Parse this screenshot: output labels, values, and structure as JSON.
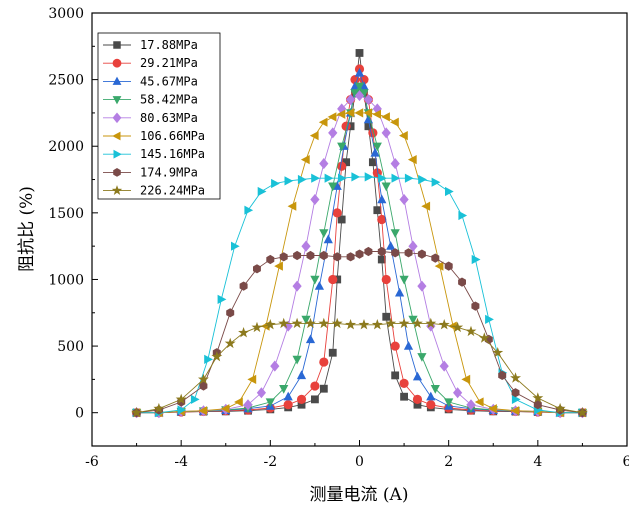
{
  "chart_data": {
    "type": "line",
    "xlabel": "测量电流 (A)",
    "ylabel": "阻抗比 (%)",
    "xlim": [
      -6,
      6
    ],
    "ylim": [
      -250,
      3000
    ],
    "xticks": [
      -6,
      -4,
      -2,
      0,
      2,
      4,
      6
    ],
    "yticks": [
      0,
      500,
      1000,
      1500,
      2000,
      2500,
      3000
    ],
    "legend_position": "top-left",
    "grid": false,
    "series": [
      {
        "name": "17.88MPa",
        "color": "#4a4a4a",
        "marker": "square",
        "x": [
          -5,
          -4.5,
          -4,
          -3.5,
          -3,
          -2.5,
          -2,
          -1.6,
          -1.3,
          -1.0,
          -0.8,
          -0.6,
          -0.5,
          -0.4,
          -0.3,
          -0.2,
          -0.1,
          0,
          0.1,
          0.2,
          0.3,
          0.4,
          0.5,
          0.6,
          0.8,
          1.0,
          1.3,
          1.6,
          2,
          2.5,
          3,
          3.5,
          4,
          4.5,
          5
        ],
        "y": [
          0,
          0,
          5,
          8,
          10,
          15,
          25,
          40,
          60,
          100,
          180,
          450,
          1000,
          1450,
          1880,
          2150,
          2400,
          2700,
          2400,
          2150,
          1880,
          1520,
          1150,
          720,
          280,
          120,
          60,
          40,
          25,
          15,
          10,
          8,
          5,
          0,
          0
        ]
      },
      {
        "name": "29.21MPa",
        "color": "#e8413c",
        "marker": "circle",
        "x": [
          -5,
          -4.5,
          -4,
          -3.5,
          -3,
          -2.5,
          -2,
          -1.6,
          -1.3,
          -1.0,
          -0.8,
          -0.6,
          -0.5,
          -0.4,
          -0.3,
          -0.2,
          -0.1,
          0,
          0.1,
          0.2,
          0.3,
          0.4,
          0.5,
          0.6,
          0.8,
          1.0,
          1.3,
          1.6,
          2,
          2.5,
          3,
          3.5,
          4,
          4.5,
          5
        ],
        "y": [
          0,
          0,
          5,
          10,
          15,
          20,
          35,
          60,
          100,
          200,
          380,
          1000,
          1500,
          1850,
          2150,
          2350,
          2500,
          2580,
          2500,
          2350,
          2100,
          1800,
          1450,
          1000,
          500,
          220,
          100,
          60,
          35,
          20,
          15,
          10,
          5,
          0,
          0
        ]
      },
      {
        "name": "45.67MPa",
        "color": "#2a68d4",
        "marker": "triangle-up",
        "x": [
          -5,
          -4.5,
          -4,
          -3.5,
          -3,
          -2.5,
          -2,
          -1.6,
          -1.3,
          -1.1,
          -0.9,
          -0.7,
          -0.5,
          -0.35,
          -0.2,
          -0.1,
          0,
          0.1,
          0.2,
          0.35,
          0.5,
          0.7,
          0.9,
          1.1,
          1.3,
          1.6,
          2,
          2.5,
          3,
          3.5,
          4,
          4.5,
          5
        ],
        "y": [
          0,
          0,
          8,
          12,
          18,
          30,
          50,
          120,
          280,
          550,
          950,
          1300,
          1700,
          2000,
          2250,
          2450,
          2550,
          2450,
          2200,
          1950,
          1600,
          1250,
          900,
          500,
          270,
          120,
          50,
          30,
          18,
          12,
          8,
          0,
          0
        ]
      },
      {
        "name": "58.42MPa",
        "color": "#3aa86b",
        "marker": "triangle-down",
        "x": [
          -5,
          -4.5,
          -4,
          -3.5,
          -3,
          -2.5,
          -2,
          -1.7,
          -1.4,
          -1.2,
          -1.0,
          -0.8,
          -0.6,
          -0.4,
          -0.2,
          -0.1,
          0,
          0.1,
          0.2,
          0.4,
          0.6,
          0.8,
          1.0,
          1.2,
          1.4,
          1.7,
          2,
          2.5,
          3,
          3.5,
          4,
          4.5,
          5
        ],
        "y": [
          0,
          0,
          8,
          12,
          20,
          35,
          80,
          180,
          400,
          700,
          1000,
          1350,
          1700,
          2000,
          2250,
          2400,
          2450,
          2400,
          2250,
          2000,
          1700,
          1350,
          1000,
          700,
          420,
          180,
          80,
          35,
          20,
          12,
          8,
          0,
          0
        ]
      },
      {
        "name": "80.63MPa",
        "color": "#b47ee3",
        "marker": "diamond",
        "x": [
          -5,
          -4.5,
          -4,
          -3.5,
          -3,
          -2.5,
          -2.2,
          -1.9,
          -1.6,
          -1.4,
          -1.2,
          -1.0,
          -0.8,
          -0.6,
          -0.4,
          -0.2,
          0,
          0.2,
          0.4,
          0.6,
          0.8,
          1.0,
          1.2,
          1.4,
          1.6,
          1.9,
          2.2,
          2.5,
          3,
          3.5,
          4,
          4.5,
          5
        ],
        "y": [
          0,
          0,
          10,
          15,
          25,
          60,
          150,
          350,
          650,
          950,
          1250,
          1600,
          1870,
          2100,
          2280,
          2350,
          2380,
          2350,
          2280,
          2100,
          1870,
          1600,
          1250,
          950,
          650,
          350,
          150,
          60,
          25,
          15,
          10,
          0,
          0
        ]
      },
      {
        "name": "106.66MPa",
        "color": "#c8960c",
        "marker": "triangle-left",
        "x": [
          -5,
          -4.5,
          -4,
          -3.5,
          -3,
          -2.7,
          -2.4,
          -2.1,
          -1.8,
          -1.5,
          -1.2,
          -1.0,
          -0.8,
          -0.6,
          -0.4,
          -0.2,
          0,
          0.2,
          0.4,
          0.6,
          0.8,
          1.0,
          1.2,
          1.5,
          1.8,
          2.1,
          2.4,
          2.7,
          3,
          3.5,
          4,
          4.5,
          5
        ],
        "y": [
          0,
          0,
          10,
          15,
          30,
          80,
          250,
          650,
          1100,
          1550,
          1900,
          2080,
          2180,
          2220,
          2240,
          2250,
          2250,
          2250,
          2240,
          2220,
          2180,
          2080,
          1900,
          1550,
          1100,
          650,
          250,
          80,
          30,
          15,
          10,
          0,
          0
        ]
      },
      {
        "name": "145.16MPa",
        "color": "#19c1d7",
        "marker": "triangle-right",
        "x": [
          -5,
          -4.5,
          -4,
          -3.7,
          -3.4,
          -3.1,
          -2.8,
          -2.5,
          -2.2,
          -1.9,
          -1.6,
          -1.3,
          -1.0,
          -0.7,
          -0.4,
          -0.1,
          0.2,
          0.5,
          0.8,
          1.1,
          1.4,
          1.7,
          2.0,
          2.3,
          2.6,
          2.9,
          3.2,
          3.5,
          4,
          4.5,
          5
        ],
        "y": [
          0,
          0,
          20,
          100,
          400,
          850,
          1250,
          1520,
          1660,
          1720,
          1740,
          1750,
          1760,
          1760,
          1760,
          1770,
          1770,
          1760,
          1760,
          1760,
          1750,
          1730,
          1660,
          1480,
          1150,
          700,
          300,
          100,
          20,
          0,
          0
        ]
      },
      {
        "name": "174.9MPa",
        "color": "#7a4a48",
        "marker": "hexagon",
        "x": [
          -5,
          -4.5,
          -4,
          -3.5,
          -3.2,
          -2.9,
          -2.6,
          -2.3,
          -2.0,
          -1.7,
          -1.4,
          -1.1,
          -0.8,
          -0.5,
          -0.2,
          0,
          0.2,
          0.5,
          0.8,
          1.1,
          1.4,
          1.7,
          2.0,
          2.3,
          2.6,
          2.9,
          3.2,
          3.5,
          4,
          4.5,
          5
        ],
        "y": [
          0,
          20,
          80,
          200,
          450,
          750,
          950,
          1080,
          1150,
          1170,
          1180,
          1180,
          1180,
          1170,
          1170,
          1190,
          1210,
          1210,
          1200,
          1200,
          1190,
          1160,
          1100,
          980,
          800,
          550,
          280,
          150,
          60,
          20,
          0
        ]
      },
      {
        "name": "226.24MPa",
        "color": "#8c7a1e",
        "marker": "star",
        "x": [
          -5,
          -4.5,
          -4,
          -3.5,
          -3.2,
          -2.9,
          -2.6,
          -2.3,
          -2.0,
          -1.7,
          -1.4,
          -1.1,
          -0.8,
          -0.5,
          -0.2,
          0.1,
          0.4,
          0.7,
          1.0,
          1.3,
          1.6,
          1.9,
          2.2,
          2.5,
          2.8,
          3.1,
          3.5,
          4,
          4.5,
          5
        ],
        "y": [
          0,
          30,
          100,
          250,
          420,
          520,
          600,
          640,
          660,
          670,
          670,
          670,
          670,
          670,
          660,
          660,
          660,
          670,
          670,
          670,
          670,
          660,
          640,
          610,
          560,
          450,
          260,
          110,
          30,
          0
        ]
      }
    ]
  }
}
